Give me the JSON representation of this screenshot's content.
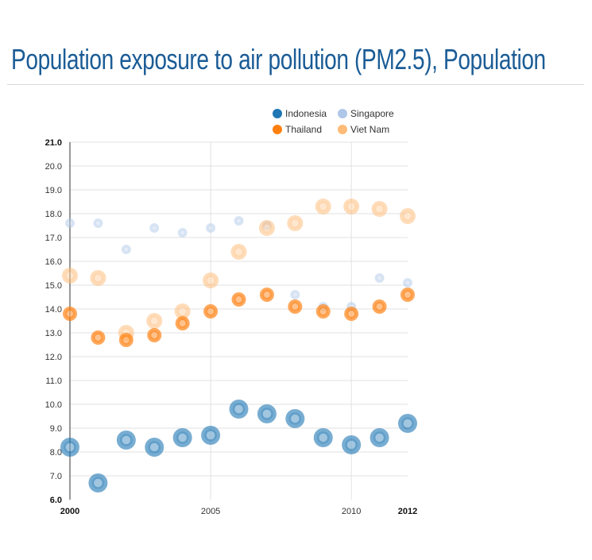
{
  "page": {
    "title": "Population exposure to air pollution (PM2.5), Population"
  },
  "chart_data": {
    "type": "scatter",
    "title": "Population exposure to air pollution (PM2.5), Population",
    "xlabel": "",
    "ylabel": "",
    "x": [
      2000,
      2001,
      2002,
      2003,
      2004,
      2005,
      2006,
      2007,
      2008,
      2009,
      2010,
      2011,
      2012
    ],
    "xlim": [
      2000,
      2012
    ],
    "ylim": [
      6.0,
      21.0
    ],
    "x_ticks": [
      {
        "value": 2000,
        "label": "2000",
        "bold": true
      },
      {
        "value": 2005,
        "label": "2005",
        "bold": false
      },
      {
        "value": 2010,
        "label": "2010",
        "bold": false
      },
      {
        "value": 2012,
        "label": "2012",
        "bold": true
      }
    ],
    "y_ticks": [
      {
        "value": 6,
        "label": "6.0",
        "bold": true
      },
      {
        "value": 7,
        "label": "7.0",
        "bold": false
      },
      {
        "value": 8,
        "label": "8.0",
        "bold": false
      },
      {
        "value": 9,
        "label": "9.0",
        "bold": false
      },
      {
        "value": 10,
        "label": "10.0",
        "bold": false
      },
      {
        "value": 11,
        "label": "11.0",
        "bold": false
      },
      {
        "value": 12,
        "label": "12.0",
        "bold": false
      },
      {
        "value": 13,
        "label": "13.0",
        "bold": false
      },
      {
        "value": 14,
        "label": "14.0",
        "bold": false
      },
      {
        "value": 15,
        "label": "15.0",
        "bold": false
      },
      {
        "value": 16,
        "label": "16.0",
        "bold": false
      },
      {
        "value": 17,
        "label": "17.0",
        "bold": false
      },
      {
        "value": 18,
        "label": "18.0",
        "bold": false
      },
      {
        "value": 19,
        "label": "19.0",
        "bold": false
      },
      {
        "value": 20,
        "label": "20.0",
        "bold": false
      },
      {
        "value": 21,
        "label": "21.0",
        "bold": true
      }
    ],
    "vertical_gridlines": [
      2005,
      2010
    ],
    "grid": true,
    "legend_position": "top-center",
    "series": [
      {
        "name": "Singapore",
        "color": "#aec7e8",
        "size_rank": 1,
        "values": [
          17.6,
          17.6,
          16.5,
          17.4,
          17.2,
          17.4,
          17.7,
          17.5,
          14.6,
          14.1,
          14.1,
          15.3,
          15.1
        ]
      },
      {
        "name": "Viet Nam",
        "color": "#ffbb78",
        "size_rank": 3,
        "values": [
          15.4,
          15.3,
          13.0,
          13.5,
          13.9,
          15.2,
          16.4,
          17.4,
          17.6,
          18.3,
          18.3,
          18.2,
          17.9
        ]
      },
      {
        "name": "Thailand",
        "color": "#ff7f0e",
        "size_rank": 2,
        "values": [
          13.8,
          12.8,
          12.7,
          12.9,
          13.4,
          13.9,
          14.4,
          14.6,
          14.1,
          13.9,
          13.8,
          14.1,
          14.6
        ]
      },
      {
        "name": "Indonesia",
        "color": "#1f77b4",
        "size_rank": 4,
        "values": [
          8.2,
          6.7,
          8.5,
          8.2,
          8.6,
          8.7,
          9.8,
          9.6,
          9.4,
          8.6,
          8.3,
          8.6,
          9.2
        ]
      }
    ],
    "legend": [
      {
        "name": "Indonesia",
        "color": "#1f77b4"
      },
      {
        "name": "Singapore",
        "color": "#aec7e8"
      },
      {
        "name": "Thailand",
        "color": "#ff7f0e"
      },
      {
        "name": "Viet Nam",
        "color": "#ffbb78"
      }
    ]
  }
}
